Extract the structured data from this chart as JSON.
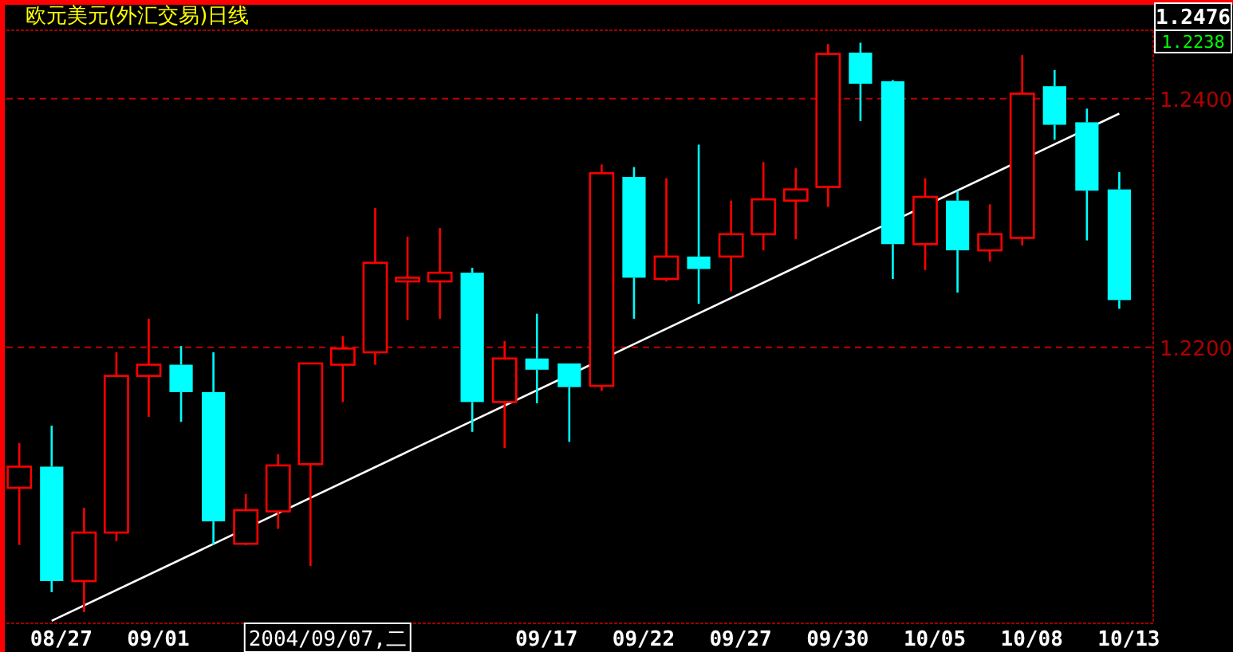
{
  "chart_data": {
    "type": "candlestick",
    "title": "欧元美元(外汇交易)日线",
    "categories": [
      null,
      "08/27",
      null,
      null,
      "09/01",
      null,
      null,
      null,
      null,
      null,
      null,
      null,
      null,
      null,
      null,
      null,
      "09/17",
      null,
      null,
      "09/22",
      null,
      null,
      "09/27",
      null,
      null,
      "09/30",
      null,
      null,
      "10/05",
      null,
      null,
      "10/08",
      null,
      null,
      "10/13"
    ],
    "ohlc": [
      [
        1.2087,
        1.2123,
        1.2041,
        1.2104
      ],
      [
        1.2104,
        1.2137,
        1.2003,
        1.2012
      ],
      [
        1.2012,
        1.2071,
        1.1987,
        1.2051
      ],
      [
        1.2051,
        1.2196,
        1.2044,
        1.2177
      ],
      [
        1.2177,
        1.2223,
        1.2144,
        1.2186
      ],
      [
        1.2186,
        1.2201,
        1.214,
        1.2164
      ],
      [
        1.2164,
        1.2196,
        1.2041,
        1.206
      ],
      [
        1.2042,
        1.2082,
        1.2041,
        1.2069
      ],
      [
        1.2068,
        1.2114,
        1.2054,
        1.2105
      ],
      [
        1.2106,
        1.2187,
        1.2024,
        1.2187
      ],
      [
        1.2186,
        1.2209,
        1.2156,
        1.2199
      ],
      [
        1.2196,
        1.2312,
        1.2186,
        1.2268
      ],
      [
        1.2253,
        1.2289,
        1.2222,
        1.2256
      ],
      [
        1.2253,
        1.2296,
        1.2223,
        1.226
      ],
      [
        1.226,
        1.2264,
        1.2132,
        1.2156
      ],
      [
        1.2156,
        1.2205,
        1.2119,
        1.2191
      ],
      [
        1.2191,
        1.2227,
        1.2155,
        1.2182
      ],
      [
        1.2187,
        1.2187,
        1.2124,
        1.2168
      ],
      [
        1.2169,
        1.2347,
        1.2165,
        1.234
      ],
      [
        1.2337,
        1.2345,
        1.2223,
        1.2256
      ],
      [
        1.2255,
        1.2336,
        1.2253,
        1.2273
      ],
      [
        1.2273,
        1.2363,
        1.2235,
        1.2263
      ],
      [
        1.2273,
        1.2318,
        1.2245,
        1.2291
      ],
      [
        1.2291,
        1.2349,
        1.2278,
        1.2319
      ],
      [
        1.2318,
        1.2344,
        1.2287,
        1.2327
      ],
      [
        1.2329,
        1.2444,
        1.2313,
        1.2436
      ],
      [
        1.2437,
        1.2445,
        1.2382,
        1.2412
      ],
      [
        1.2414,
        1.2415,
        1.2255,
        1.2283
      ],
      [
        1.2283,
        1.2336,
        1.2262,
        1.2321
      ],
      [
        1.2318,
        1.2326,
        1.2244,
        1.2278
      ],
      [
        1.2278,
        1.2315,
        1.2269,
        1.2291
      ],
      [
        1.2288,
        1.2435,
        1.2282,
        1.2404
      ],
      [
        1.241,
        1.2423,
        1.2367,
        1.2379
      ],
      [
        1.2381,
        1.2392,
        1.2286,
        1.2326
      ],
      [
        1.2327,
        1.2341,
        1.2231,
        1.2238
      ]
    ],
    "colors": [
      "#ff0000",
      "#00ffff",
      "#ff0000",
      "#ff0000",
      "#ff0000",
      "#00ffff",
      "#00ffff",
      "#ff0000",
      "#ff0000",
      "#ff0000",
      "#ff0000",
      "#ff0000",
      "#ff0000",
      "#ff0000",
      "#00ffff",
      "#ff0000",
      "#00ffff",
      "#00ffff",
      "#ff0000",
      "#00ffff",
      "#ff0000",
      "#00ffff",
      "#ff0000",
      "#ff0000",
      "#ff0000",
      "#ff0000",
      "#00ffff",
      "#00ffff",
      "#ff0000",
      "#00ffff",
      "#ff0000",
      "#ff0000",
      "#00ffff",
      "#00ffff",
      "#00ffff"
    ],
    "series": [
      {
        "type": "line",
        "color": "#ffffff",
        "x": [
          "08/27",
          "10/13"
        ],
        "values": [
          1.198,
          1.2388
        ]
      }
    ],
    "ylim": [
      1.1978,
      1.2455
    ],
    "yticks": [
      {
        "value": 1.24,
        "label": "1.2400"
      },
      {
        "value": 1.22,
        "label": "1.2200"
      }
    ],
    "grid": "y",
    "annotations": [
      "2004/09/07,二",
      "1.2476",
      "1.2238"
    ]
  }
}
